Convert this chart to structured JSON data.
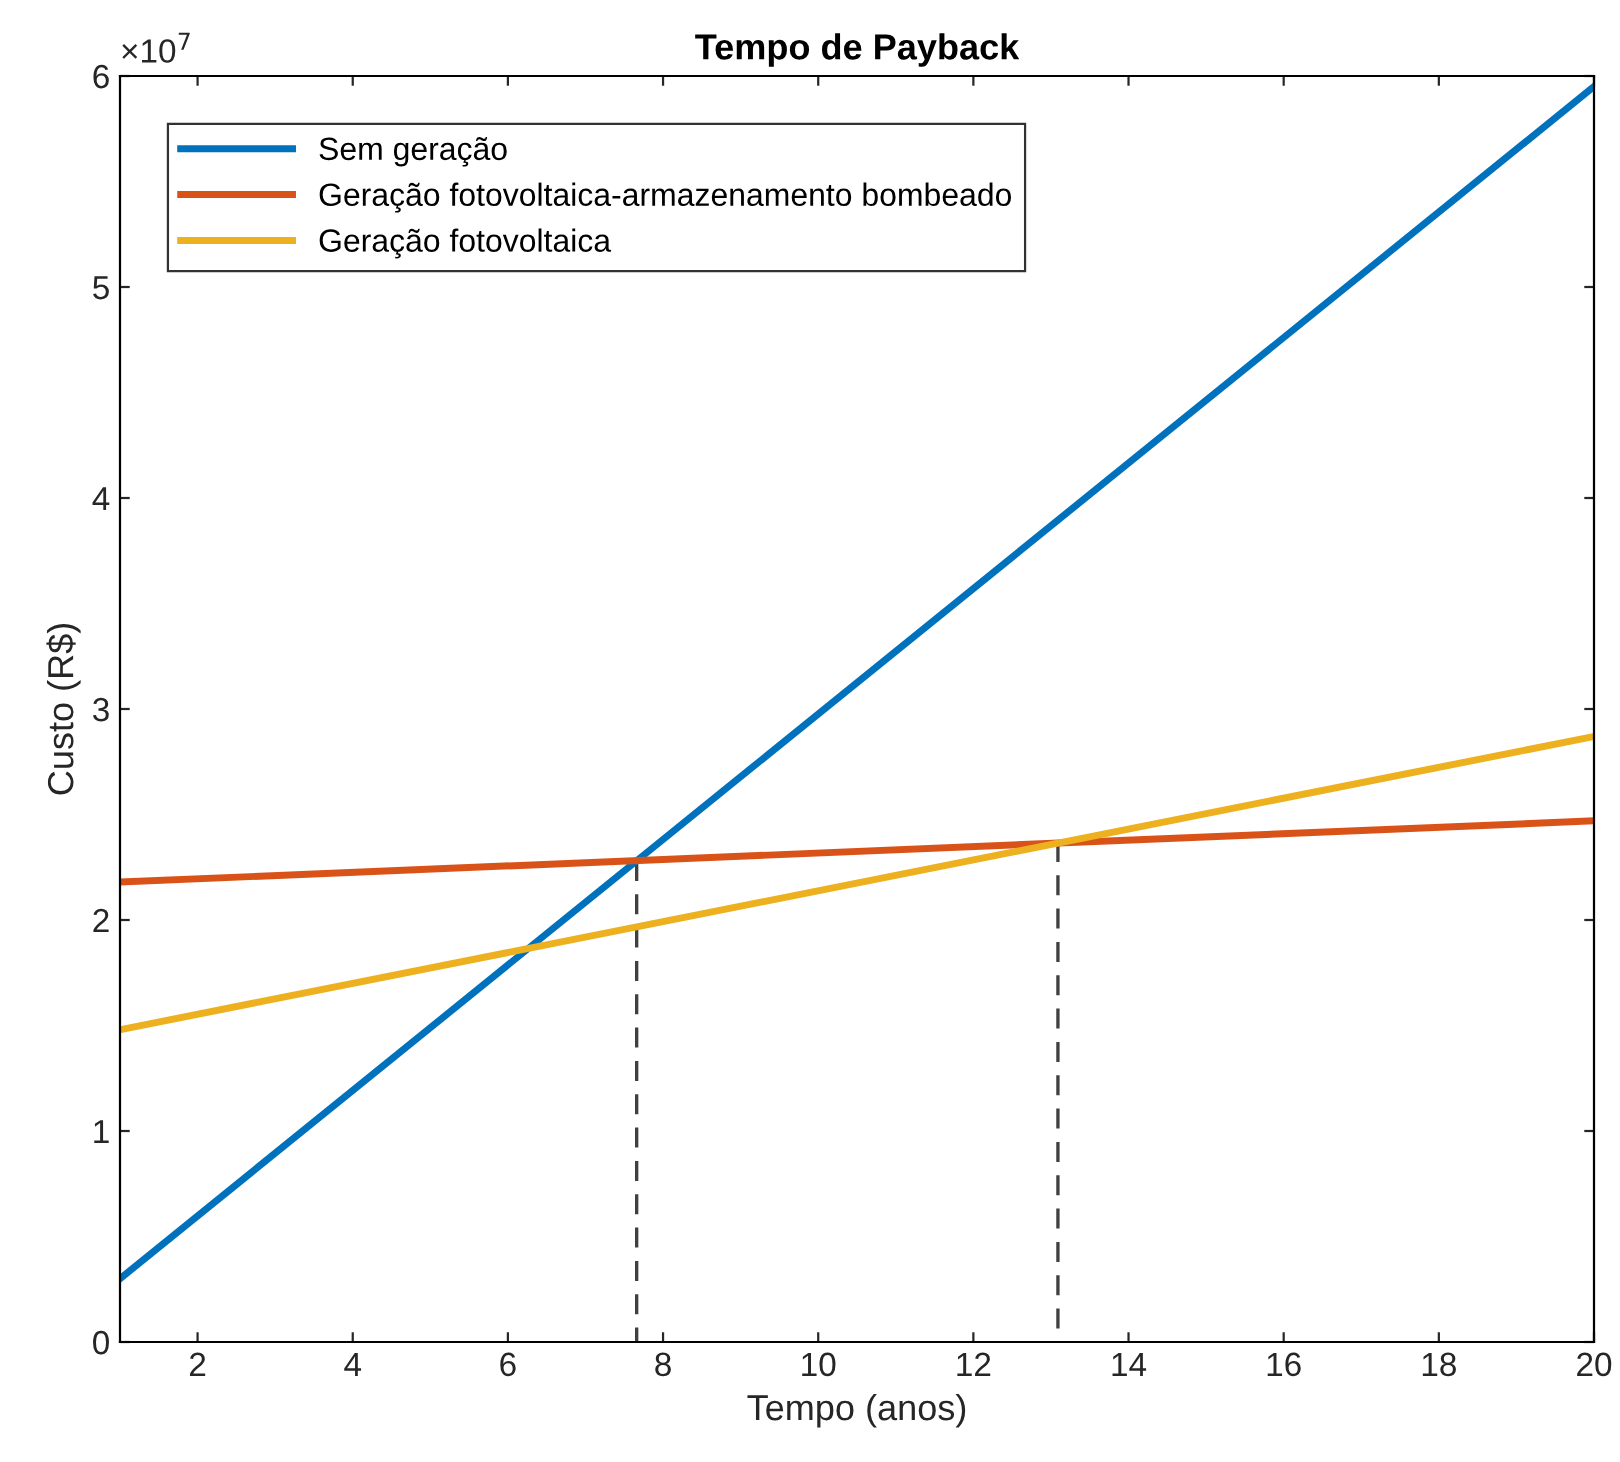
{
  "chart_data": {
    "type": "line",
    "title": "Tempo de Payback",
    "xlabel": "Tempo (anos)",
    "ylabel": "Custo (R$)",
    "xlim": [
      1,
      20
    ],
    "xticks": [
      2,
      4,
      6,
      8,
      10,
      12,
      14,
      16,
      18,
      20
    ],
    "ylim": [
      0,
      6
    ],
    "yticks": [
      0,
      1,
      2,
      3,
      4,
      5,
      6
    ],
    "annotations": [
      "×10$^{7}$"
    ],
    "grid": false,
    "legend": "top left",
    "marker": "none",
    "line_style": "solid",
    "series": [
      {
        "name": "Sem geração",
        "color": "#0072bd",
        "x": [
          1,
          20
        ],
        "values": [
          0.3,
          5.95
        ]
      },
      {
        "name": "Geração fotovoltaica-armazenamento bombeado",
        "color": "#d95319",
        "x": [
          1,
          20
        ],
        "values": [
          2.18,
          2.47
        ]
      },
      {
        "name": "Geração fotovoltaica",
        "color": "#edb120",
        "x": [
          1,
          20
        ],
        "values": [
          1.48,
          2.87
        ]
      },
      {
        "color": "#404040",
        "line_style": "dashed",
        "x": [
          7.66,
          7.66
        ],
        "values": [
          2.28,
          0
        ]
      },
      {
        "color": "#404040",
        "line_style": "dashed",
        "x": [
          13.09,
          13.09
        ],
        "values": [
          2.37,
          0
        ]
      }
    ]
  }
}
